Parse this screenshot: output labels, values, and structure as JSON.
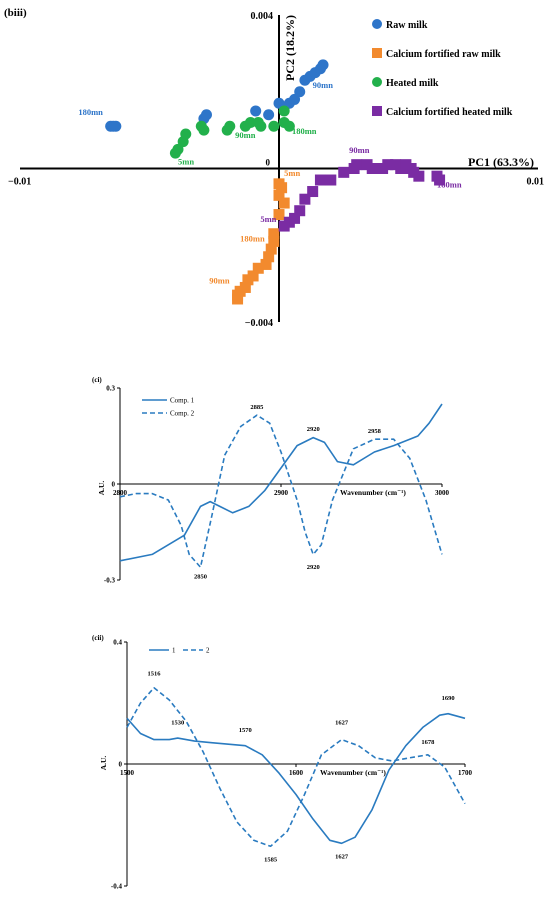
{
  "chart_data": [
    {
      "type": "scatter",
      "panel": "(biii)",
      "xlabel": "PC1 (63.3%)",
      "ylabel": "PC2 (18.2%)",
      "xlim": [
        -0.01,
        0.01
      ],
      "ylim": [
        -0.004,
        0.004
      ],
      "x_ticks": [
        {
          "v": -0.01,
          "label": "−0.01"
        },
        {
          "v": 0.01,
          "label": "0.01"
        }
      ],
      "y_ticks": [
        {
          "v": 0.004,
          "label": "0.004"
        },
        {
          "v": -0.004,
          "label": "−0.004"
        }
      ],
      "origin_label": "0",
      "legend_position": "top-right",
      "colors": {
        "raw": "#2e75c9",
        "cfraw": "#f28a2e",
        "heated": "#22b04b",
        "cfheated": "#7a2ca3"
      },
      "series": [
        {
          "key": "raw",
          "name": "Raw milk",
          "marker": "circle",
          "points": [
            [
              -0.0065,
              0.0011
            ],
            [
              -0.0064,
              0.0011
            ],
            [
              -0.0063,
              0.0011
            ],
            [
              -0.0029,
              0.0013
            ],
            [
              -0.0028,
              0.0014
            ],
            [
              -0.0009,
              0.0015
            ],
            [
              -0.0004,
              0.0014
            ],
            [
              0.0,
              0.0017
            ],
            [
              0.0002,
              0.0016
            ],
            [
              0.0004,
              0.0017
            ],
            [
              0.0006,
              0.0018
            ],
            [
              0.0008,
              0.002
            ],
            [
              0.001,
              0.0023
            ],
            [
              0.0012,
              0.0024
            ],
            [
              0.0014,
              0.0025
            ],
            [
              0.0016,
              0.0026
            ],
            [
              0.0017,
              0.0027
            ]
          ],
          "labels": [
            {
              "text": "180mn",
              "x": -0.0068,
              "y": 0.0014,
              "anchor": "end"
            },
            {
              "text": "90mn",
              "x": 0.0013,
              "y": 0.0021,
              "anchor": "start"
            }
          ]
        },
        {
          "key": "cfraw",
          "name": "Calcium fortified raw milk",
          "marker": "square",
          "points": [
            [
              0.0,
              -0.0004
            ],
            [
              0.0001,
              -0.0005
            ],
            [
              0.0,
              -0.0007
            ],
            [
              0.0002,
              -0.0009
            ],
            [
              0.0,
              -0.0012
            ],
            [
              -0.0002,
              -0.0017
            ],
            [
              -0.0002,
              -0.0019
            ],
            [
              -0.0003,
              -0.0021
            ],
            [
              -0.0004,
              -0.0023
            ],
            [
              -0.0005,
              -0.0025
            ],
            [
              -0.0008,
              -0.0026
            ],
            [
              -0.001,
              -0.0028
            ],
            [
              -0.0012,
              -0.0029
            ],
            [
              -0.0013,
              -0.0031
            ],
            [
              -0.0015,
              -0.0032
            ],
            [
              -0.0016,
              -0.0033
            ],
            [
              -0.0016,
              -0.0034
            ]
          ],
          "labels": [
            {
              "text": "5mn",
              "x": 0.0002,
              "y": -0.0002,
              "anchor": "start"
            },
            {
              "text": "180mn",
              "x": -0.0015,
              "y": -0.0019,
              "anchor": "start"
            },
            {
              "text": "90mn",
              "x": -0.0023,
              "y": -0.003,
              "anchor": "middle"
            }
          ]
        },
        {
          "key": "heated",
          "name": "Heated milk",
          "marker": "circle",
          "points": [
            [
              -0.004,
              0.0004
            ],
            [
              -0.0039,
              0.0005
            ],
            [
              -0.0037,
              0.0007
            ],
            [
              -0.0036,
              0.0009
            ],
            [
              -0.003,
              0.0011
            ],
            [
              -0.0029,
              0.001
            ],
            [
              -0.002,
              0.001
            ],
            [
              -0.0019,
              0.0011
            ],
            [
              -0.0013,
              0.0011
            ],
            [
              -0.0011,
              0.0012
            ],
            [
              -0.0008,
              0.0012
            ],
            [
              -0.0007,
              0.0011
            ],
            [
              -0.0002,
              0.0011
            ],
            [
              0.0002,
              0.0012
            ],
            [
              0.0004,
              0.0011
            ],
            [
              0.0002,
              0.0015
            ]
          ],
          "labels": [
            {
              "text": "5mn",
              "x": -0.0039,
              "y": 0.0001,
              "anchor": "start"
            },
            {
              "text": "90mn",
              "x": -0.0013,
              "y": 0.0008,
              "anchor": "middle"
            },
            {
              "text": "180mn",
              "x": 0.0005,
              "y": 0.0009,
              "anchor": "start"
            }
          ]
        },
        {
          "key": "cfheated",
          "name": "Calcium fortified heated milk",
          "marker": "square",
          "points": [
            [
              0.0002,
              -0.0015
            ],
            [
              0.0004,
              -0.0014
            ],
            [
              0.0006,
              -0.0013
            ],
            [
              0.0008,
              -0.0011
            ],
            [
              0.001,
              -0.0008
            ],
            [
              0.0013,
              -0.0006
            ],
            [
              0.0016,
              -0.0003
            ],
            [
              0.002,
              -0.0003
            ],
            [
              0.0025,
              -0.0001
            ],
            [
              0.0029,
              0.0
            ],
            [
              0.003,
              0.0001
            ],
            [
              0.0034,
              0.0001
            ],
            [
              0.0036,
              0.0
            ],
            [
              0.004,
              0.0
            ],
            [
              0.0042,
              0.0001
            ],
            [
              0.0045,
              0.0001
            ],
            [
              0.0047,
              0.0
            ],
            [
              0.0049,
              0.0001
            ],
            [
              0.0051,
              0.0
            ],
            [
              0.0052,
              -0.0001
            ],
            [
              0.0054,
              -0.0002
            ],
            [
              0.0061,
              -0.0002
            ],
            [
              0.0062,
              -0.0003
            ]
          ],
          "labels": [
            {
              "text": "90mn",
              "x": 0.0031,
              "y": 0.0004,
              "anchor": "middle"
            },
            {
              "text": "5mn",
              "x": -0.0001,
              "y": -0.0014,
              "anchor": "end"
            },
            {
              "text": "180mn",
              "x": 0.0061,
              "y": -0.0005,
              "anchor": "start"
            }
          ]
        }
      ]
    },
    {
      "type": "line",
      "panel": "(ci)",
      "xlabel": "Wavenumber (cm⁻¹)",
      "ylabel": "A.U.",
      "xlim": [
        2800,
        3000
      ],
      "ylim": [
        -0.3,
        0.3
      ],
      "x_ticks": [
        {
          "v": 2800,
          "label": "2800"
        },
        {
          "v": 2900,
          "label": "2900"
        },
        {
          "v": 3000,
          "label": "3000"
        }
      ],
      "y_ticks": [
        {
          "v": 0.3,
          "label": "0.3"
        },
        {
          "v": 0,
          "label": "0"
        },
        {
          "v": -0.3,
          "label": "-0.3"
        }
      ],
      "legend_position": "top-left",
      "color": "#2a7bc0",
      "series": [
        {
          "name": "Comp. 1",
          "dash": false,
          "x": [
            2800,
            2820,
            2840,
            2850,
            2856,
            2862,
            2870,
            2880,
            2890,
            2900,
            2910,
            2920,
            2927,
            2935,
            2945,
            2958,
            2970,
            2985,
            2992,
            3000
          ],
          "values": [
            -0.24,
            -0.22,
            -0.16,
            -0.07,
            -0.055,
            -0.07,
            -0.09,
            -0.07,
            -0.02,
            0.05,
            0.12,
            0.145,
            0.13,
            0.07,
            0.06,
            0.1,
            0.12,
            0.15,
            0.19,
            0.25
          ]
        },
        {
          "name": "Comp. 2",
          "dash": true,
          "x": [
            2800,
            2810,
            2820,
            2830,
            2838,
            2843,
            2850,
            2857,
            2865,
            2875,
            2885,
            2893,
            2900,
            2910,
            2915,
            2920,
            2925,
            2932,
            2945,
            2958,
            2970,
            2980,
            2990,
            3000
          ],
          "values": [
            -0.04,
            -0.03,
            -0.03,
            -0.05,
            -0.13,
            -0.22,
            -0.26,
            -0.1,
            0.09,
            0.18,
            0.215,
            0.19,
            0.1,
            -0.05,
            -0.15,
            -0.22,
            -0.19,
            -0.05,
            0.11,
            0.14,
            0.14,
            0.08,
            -0.05,
            -0.22
          ]
        }
      ],
      "annotations": [
        {
          "text": "2885",
          "x": 2885,
          "y": 0.235
        },
        {
          "text": "2920",
          "x": 2920,
          "y": 0.165
        },
        {
          "text": "2958",
          "x": 2958,
          "y": 0.16
        },
        {
          "text": "2850",
          "x": 2850,
          "y": -0.295
        },
        {
          "text": "2920",
          "x": 2920,
          "y": -0.265
        }
      ]
    },
    {
      "type": "line",
      "panel": "(cii)",
      "xlabel": "Wavenumber (cm⁻¹)",
      "ylabel": "A.U.",
      "xlim": [
        1500,
        1700
      ],
      "ylim": [
        -0.4,
        0.4
      ],
      "x_ticks": [
        {
          "v": 1500,
          "label": "1500"
        },
        {
          "v": 1600,
          "label": "1600"
        },
        {
          "v": 1700,
          "label": "1700"
        }
      ],
      "y_ticks": [
        {
          "v": 0.4,
          "label": "0.4"
        },
        {
          "v": 0,
          "label": "0"
        },
        {
          "v": -0.4,
          "label": "-0.4"
        }
      ],
      "legend_position": "top-left",
      "color": "#2a7bc0",
      "series": [
        {
          "name": "1",
          "dash": false,
          "x": [
            1500,
            1508,
            1516,
            1525,
            1530,
            1540,
            1550,
            1560,
            1570,
            1580,
            1590,
            1600,
            1610,
            1620,
            1627,
            1635,
            1645,
            1655,
            1665,
            1675,
            1685,
            1690,
            1700
          ],
          "values": [
            0.15,
            0.1,
            0.08,
            0.08,
            0.085,
            0.075,
            0.07,
            0.065,
            0.06,
            0.03,
            -0.03,
            -0.1,
            -0.18,
            -0.25,
            -0.26,
            -0.24,
            -0.15,
            -0.02,
            0.06,
            0.12,
            0.16,
            0.165,
            0.15
          ]
        },
        {
          "name": "2",
          "dash": true,
          "x": [
            1500,
            1508,
            1516,
            1525,
            1535,
            1545,
            1555,
            1565,
            1575,
            1585,
            1595,
            1605,
            1615,
            1627,
            1637,
            1647,
            1657,
            1667,
            1678,
            1688,
            1700
          ],
          "values": [
            0.12,
            0.2,
            0.25,
            0.21,
            0.14,
            0.04,
            -0.08,
            -0.19,
            -0.25,
            -0.27,
            -0.22,
            -0.1,
            0.03,
            0.08,
            0.06,
            0.02,
            0.01,
            0.02,
            0.03,
            -0.01,
            -0.13
          ]
        }
      ],
      "annotations": [
        {
          "text": "1516",
          "x": 1516,
          "y": 0.29
        },
        {
          "text": "1530",
          "x": 1530,
          "y": 0.13
        },
        {
          "text": "1570",
          "x": 1570,
          "y": 0.105
        },
        {
          "text": "1627",
          "x": 1627,
          "y": 0.13
        },
        {
          "text": "1690",
          "x": 1690,
          "y": 0.21
        },
        {
          "text": "1678",
          "x": 1678,
          "y": 0.065
        },
        {
          "text": "1585",
          "x": 1585,
          "y": -0.32
        },
        {
          "text": "1627",
          "x": 1627,
          "y": -0.31
        }
      ]
    }
  ]
}
